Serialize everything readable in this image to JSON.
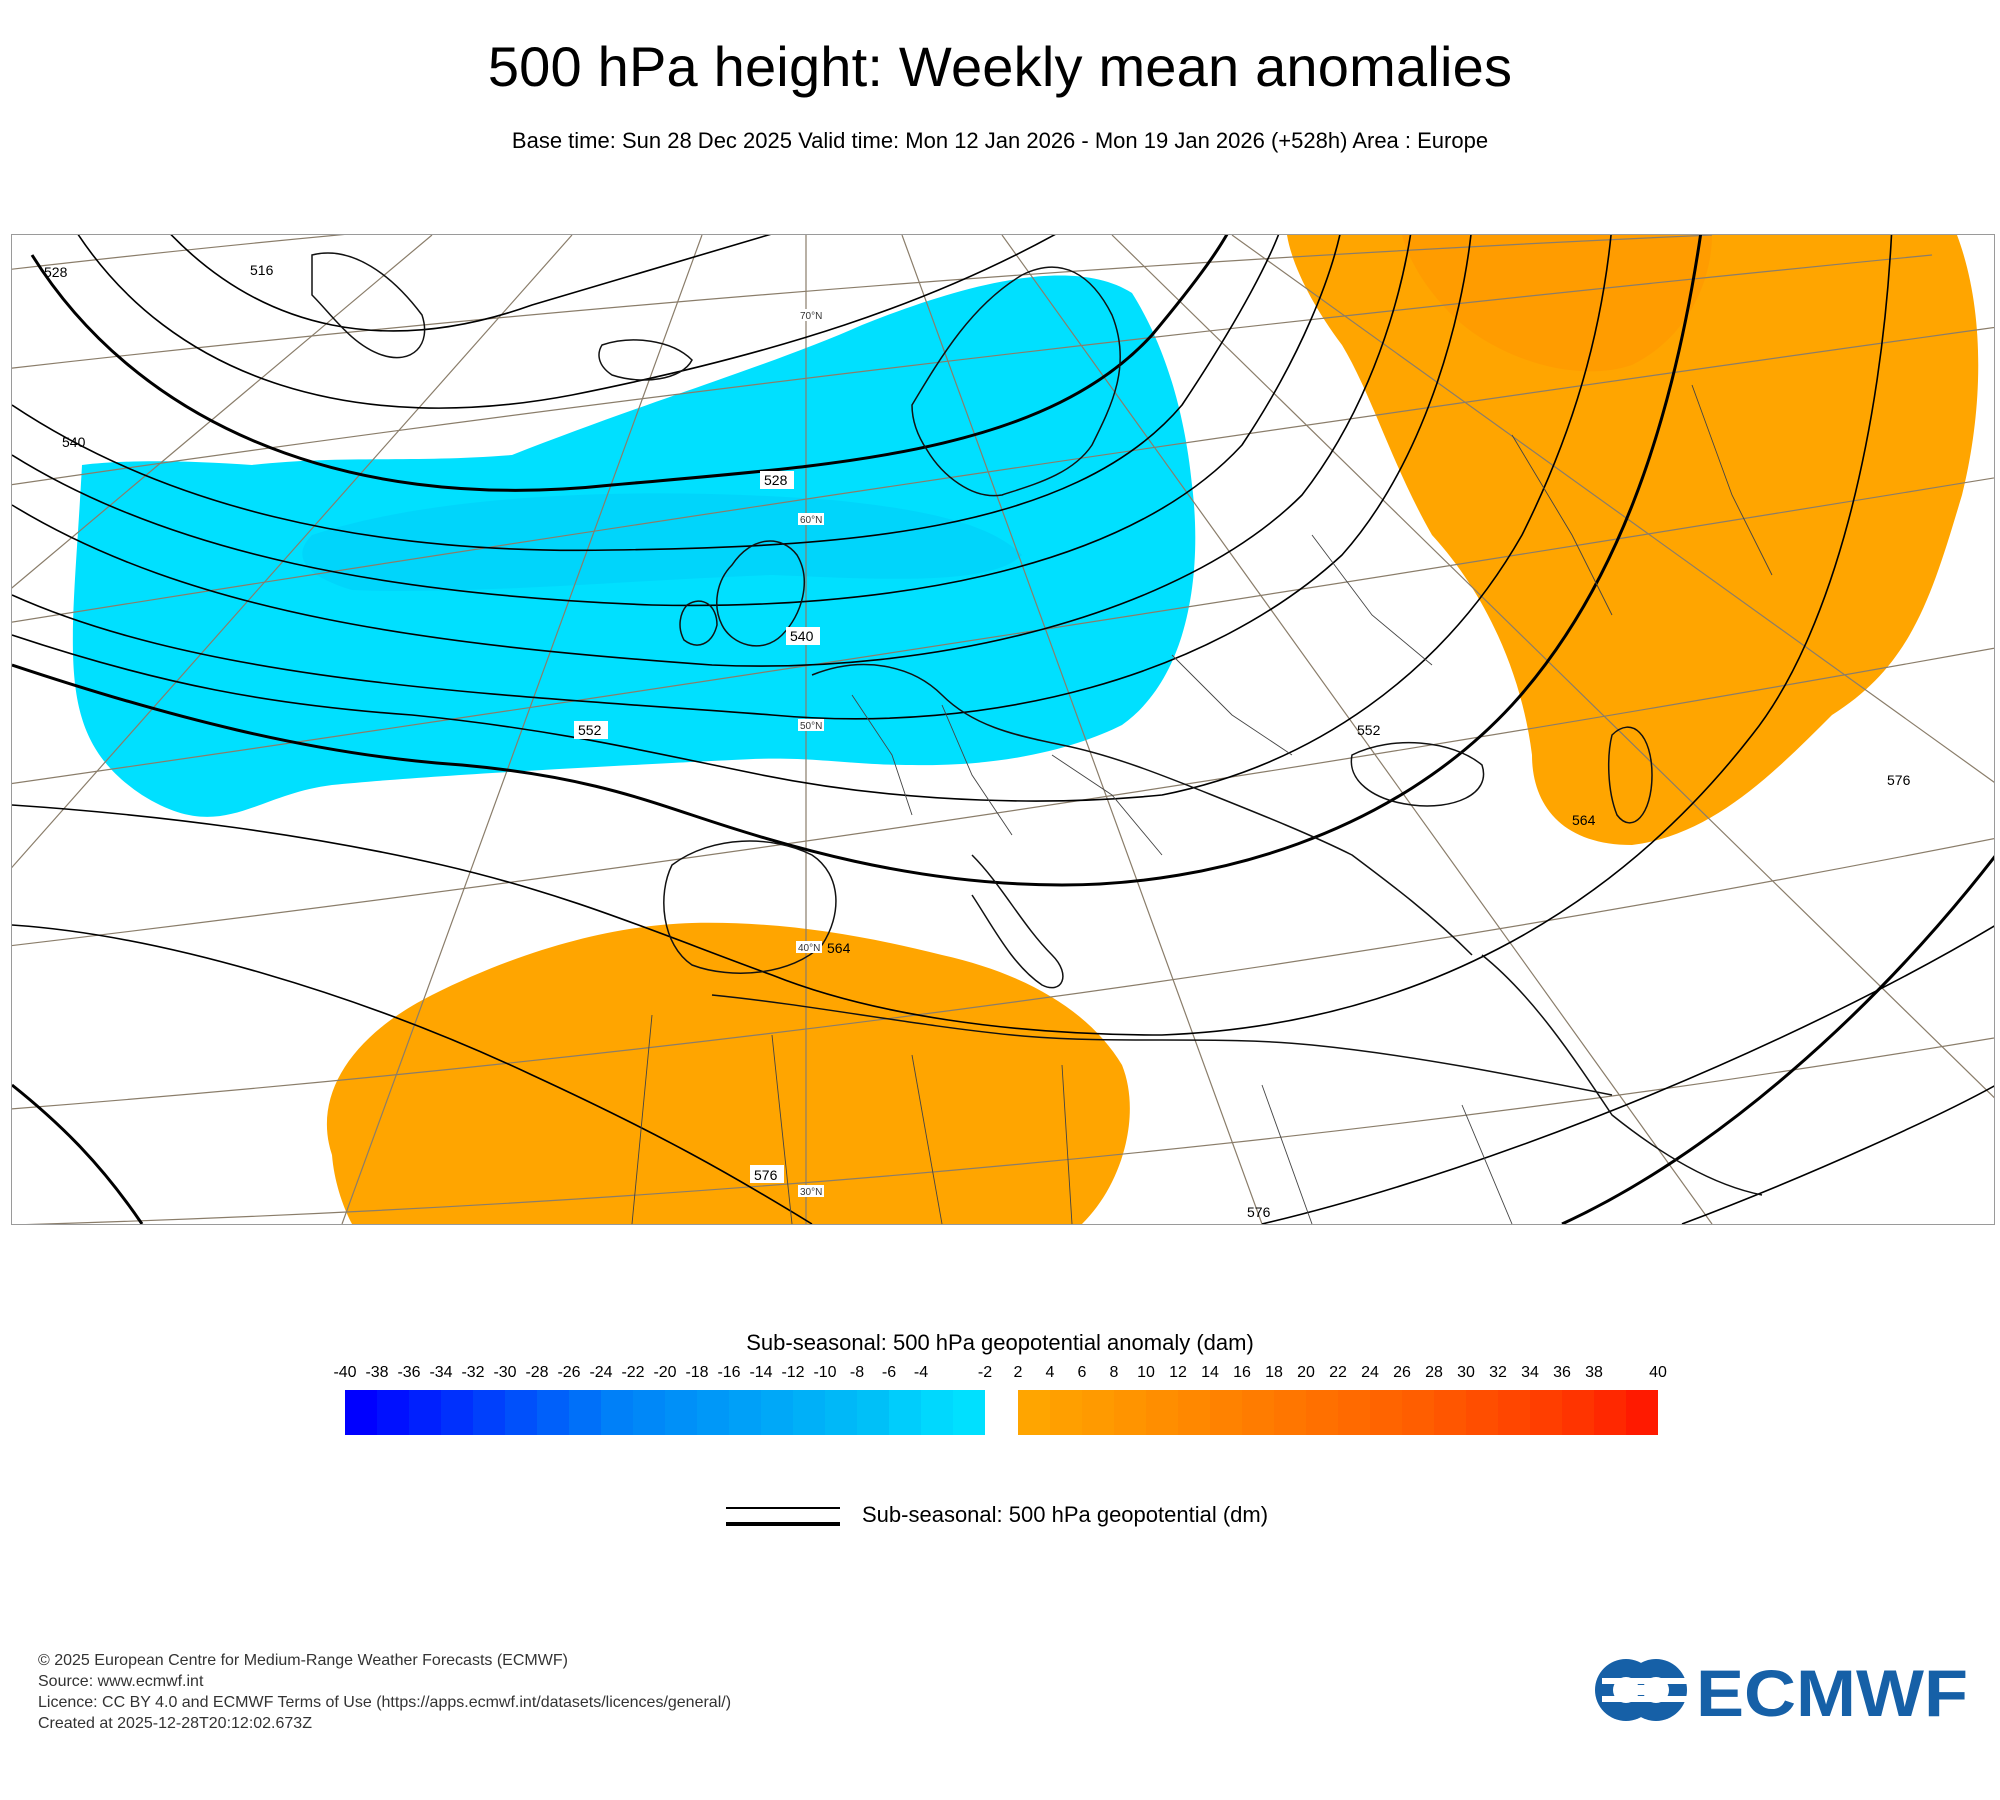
{
  "header": {
    "title": "500 hPa height: Weekly mean anomalies",
    "subtitle": "Base time: Sun 28 Dec 2025 Valid time: Mon 12 Jan 2026 - Mon 19 Jan 2026 (+528h) Area : Europe"
  },
  "map": {
    "contour_labels": [
      "516",
      "528",
      "528",
      "540",
      "540",
      "552",
      "552",
      "564",
      "564",
      "576",
      "576",
      "576"
    ],
    "latitude_labels": [
      "70°N",
      "60°N",
      "50°N",
      "40°N",
      "30°N"
    ],
    "colors": {
      "negative_anomaly": "#00e0ff",
      "positive_anomaly": "#ffa500",
      "coast": "#111111",
      "graticule": "#8a7d6a"
    }
  },
  "colorbar": {
    "title": "Sub-seasonal: 500 hPa geopotential anomaly (dam)",
    "ticks_negative": [
      "-40",
      "-38",
      "-36",
      "-34",
      "-32",
      "-30",
      "-28",
      "-26",
      "-24",
      "-22",
      "-20",
      "-18",
      "-16",
      "-14",
      "-12",
      "-10",
      "-8",
      "-6",
      "-4",
      "-2"
    ],
    "ticks_positive": [
      "2",
      "4",
      "6",
      "8",
      "10",
      "12",
      "14",
      "16",
      "18",
      "20",
      "22",
      "24",
      "26",
      "28",
      "30",
      "32",
      "34",
      "36",
      "38",
      "40"
    ],
    "colors_negative": [
      "#0000ff",
      "#0010ff",
      "#0020fe",
      "#0030fd",
      "#0040fc",
      "#0050fb",
      "#0060fa",
      "#0070f9",
      "#0080f8",
      "#0088f8",
      "#0090f8",
      "#0098f8",
      "#00a0f8",
      "#00a8f8",
      "#00b0f8",
      "#00b8f8",
      "#00c0f8",
      "#00cdfc",
      "#00d8fe",
      "#00e0ff"
    ],
    "colors_positive": [
      "#ffa500",
      "#ff9f00",
      "#ff9a00",
      "#ff9400",
      "#ff8e00",
      "#ff8800",
      "#ff8200",
      "#ff7c00",
      "#ff7600",
      "#ff7000",
      "#ff6a00",
      "#ff6400",
      "#ff5e00",
      "#ff5600",
      "#ff4e00",
      "#ff4600",
      "#ff3e00",
      "#ff3400",
      "#ff2800",
      "#ff1a00"
    ]
  },
  "legend": {
    "line_label": "Sub-seasonal: 500 hPa geopotential (dm)"
  },
  "footer": {
    "copyright": "© 2025 European Centre for Medium-Range Weather Forecasts (ECMWF)",
    "source": "Source: www.ecmwf.int",
    "licence": "Licence: CC BY 4.0 and ECMWF Terms of Use (https://apps.ecmwf.int/datasets/licences/general/)",
    "created": "Created at 2025-12-28T20:12:02.673Z"
  },
  "logo": {
    "text": "ECMWF",
    "color": "#1660a7"
  }
}
